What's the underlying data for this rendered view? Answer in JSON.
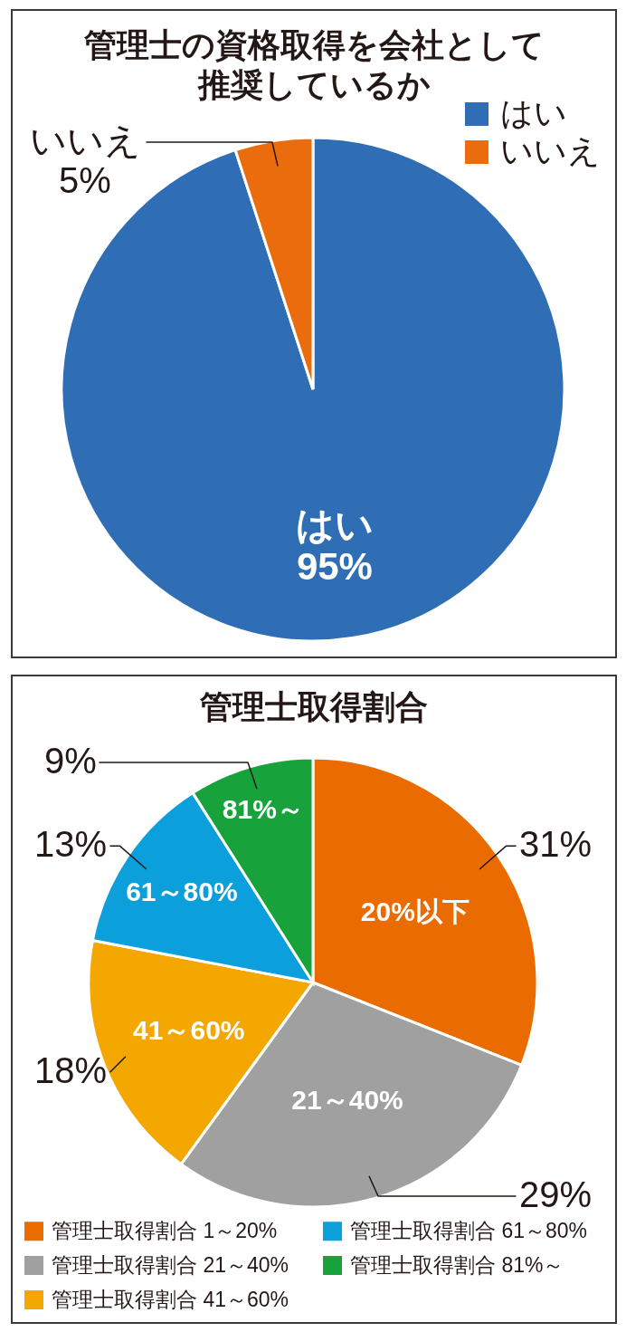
{
  "chart_data": [
    {
      "type": "pie",
      "title": "管理士の資格取得を会社として推奨しているか",
      "categories": [
        "はい",
        "いいえ"
      ],
      "values": [
        95,
        5
      ],
      "colors": [
        "#2f6eb5",
        "#eb6c0c"
      ],
      "value_labels": [
        "95%",
        "5%"
      ],
      "legend": "top right"
    },
    {
      "type": "pie",
      "title": "管理士取得割合",
      "categories": [
        "管理士取得割合 1～20%",
        "管理士取得割合 21～40%",
        "管理士取得割合 41～60%",
        "管理士取得割合 61～80%",
        "管理士取得割合 81%～"
      ],
      "values": [
        31,
        29,
        18,
        13,
        9
      ],
      "colors": [
        "#ea6c00",
        "#a0a0a0",
        "#f3a700",
        "#0b9fdc",
        "#17a23c"
      ],
      "value_labels": [
        "31%",
        "29%",
        "18%",
        "13%",
        "9%"
      ],
      "annotations": [
        "20%以下",
        "21～40%",
        "41～60%",
        "61～80%",
        "81%～"
      ],
      "legend": "bottom"
    }
  ]
}
